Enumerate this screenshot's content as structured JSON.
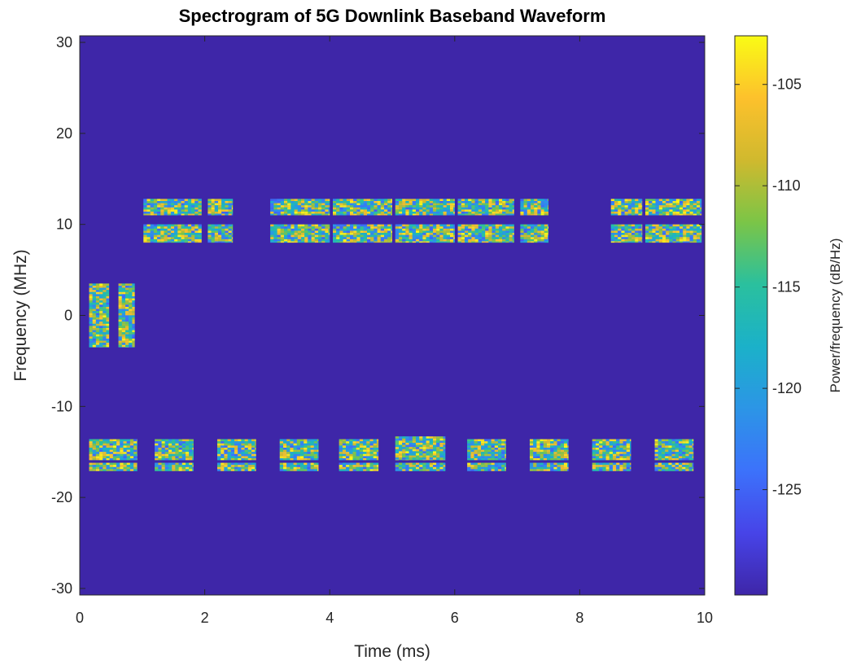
{
  "chart_data": {
    "type": "heatmap",
    "title": "Spectrogram of 5G Downlink Baseband Waveform",
    "xlabel": "Time (ms)",
    "ylabel": "Frequency (MHz)",
    "xlim": [
      0,
      10
    ],
    "ylim": [
      -30.72,
      30.72
    ],
    "xticks": [
      0,
      2,
      4,
      6,
      8,
      10
    ],
    "yticks": [
      -30,
      -20,
      -10,
      0,
      10,
      20,
      30
    ],
    "background_color": "#3e26a8",
    "colorbar": {
      "label": "Power/frequency (dB/Hz)",
      "range": [
        -130.2,
        -102.6
      ],
      "ticks": [
        -125,
        -120,
        -115,
        -110,
        -105
      ],
      "colormap": [
        "#3e26a8",
        "#4744e8",
        "#3c72fb",
        "#2c95e6",
        "#1bb1c9",
        "#2ac09e",
        "#7bc547",
        "#d0b92e",
        "#fdc12c",
        "#f9fb15"
      ]
    },
    "bursts": [
      {
        "t": [
          0.15,
          0.47
        ],
        "f": [
          -3.5,
          3.5
        ]
      },
      {
        "t": [
          0.62,
          0.88
        ],
        "f": [
          -3.5,
          3.5
        ]
      },
      {
        "t": [
          1.02,
          1.95
        ],
        "f": [
          11.0,
          12.8
        ]
      },
      {
        "t": [
          1.02,
          1.95
        ],
        "f": [
          8.0,
          10.0
        ]
      },
      {
        "t": [
          2.05,
          2.45
        ],
        "f": [
          11.0,
          12.8
        ]
      },
      {
        "t": [
          2.05,
          2.45
        ],
        "f": [
          8.0,
          10.0
        ]
      },
      {
        "t": [
          3.05,
          4.0
        ],
        "f": [
          11.0,
          12.8
        ]
      },
      {
        "t": [
          3.05,
          4.0
        ],
        "f": [
          8.0,
          10.0
        ]
      },
      {
        "t": [
          4.05,
          5.0
        ],
        "f": [
          11.0,
          12.8
        ]
      },
      {
        "t": [
          4.05,
          5.0
        ],
        "f": [
          8.0,
          10.0
        ]
      },
      {
        "t": [
          5.05,
          6.0
        ],
        "f": [
          11.0,
          12.8
        ]
      },
      {
        "t": [
          5.05,
          6.0
        ],
        "f": [
          8.0,
          10.0
        ]
      },
      {
        "t": [
          6.05,
          6.95
        ],
        "f": [
          11.0,
          12.8
        ]
      },
      {
        "t": [
          6.05,
          6.95
        ],
        "f": [
          8.0,
          10.0
        ]
      },
      {
        "t": [
          7.05,
          7.5
        ],
        "f": [
          11.0,
          12.8
        ]
      },
      {
        "t": [
          7.05,
          7.5
        ],
        "f": [
          8.0,
          10.0
        ]
      },
      {
        "t": [
          8.5,
          9.0
        ],
        "f": [
          11.0,
          12.8
        ]
      },
      {
        "t": [
          8.5,
          9.0
        ],
        "f": [
          8.0,
          10.0
        ]
      },
      {
        "t": [
          9.05,
          9.95
        ],
        "f": [
          11.0,
          12.8
        ]
      },
      {
        "t": [
          9.05,
          9.95
        ],
        "f": [
          8.0,
          10.0
        ]
      },
      {
        "t": [
          0.15,
          0.92
        ],
        "f": [
          -15.9,
          -13.6
        ]
      },
      {
        "t": [
          0.15,
          0.92
        ],
        "f": [
          -17.1,
          -16.2
        ]
      },
      {
        "t": [
          1.2,
          1.82
        ],
        "f": [
          -15.9,
          -13.6
        ]
      },
      {
        "t": [
          1.2,
          1.82
        ],
        "f": [
          -17.1,
          -16.2
        ]
      },
      {
        "t": [
          2.2,
          2.82
        ],
        "f": [
          -15.9,
          -13.6
        ]
      },
      {
        "t": [
          2.2,
          2.82
        ],
        "f": [
          -17.1,
          -16.2
        ]
      },
      {
        "t": [
          3.2,
          3.82
        ],
        "f": [
          -15.9,
          -13.6
        ]
      },
      {
        "t": [
          3.2,
          3.82
        ],
        "f": [
          -17.1,
          -16.2
        ]
      },
      {
        "t": [
          4.15,
          4.78
        ],
        "f": [
          -15.9,
          -13.6
        ]
      },
      {
        "t": [
          4.15,
          4.78
        ],
        "f": [
          -17.1,
          -16.2
        ]
      },
      {
        "t": [
          5.05,
          5.85
        ],
        "f": [
          -15.9,
          -13.3
        ]
      },
      {
        "t": [
          5.05,
          5.85
        ],
        "f": [
          -17.1,
          -16.2
        ]
      },
      {
        "t": [
          6.2,
          6.82
        ],
        "f": [
          -15.9,
          -13.6
        ]
      },
      {
        "t": [
          6.2,
          6.82
        ],
        "f": [
          -17.1,
          -16.2
        ]
      },
      {
        "t": [
          7.2,
          7.82
        ],
        "f": [
          -15.9,
          -13.6
        ]
      },
      {
        "t": [
          7.2,
          7.82
        ],
        "f": [
          -17.1,
          -16.2
        ]
      },
      {
        "t": [
          8.2,
          8.82
        ],
        "f": [
          -15.9,
          -13.6
        ]
      },
      {
        "t": [
          8.2,
          8.82
        ],
        "f": [
          -17.1,
          -16.2
        ]
      },
      {
        "t": [
          9.2,
          9.82
        ],
        "f": [
          -15.9,
          -13.6
        ]
      },
      {
        "t": [
          9.2,
          9.82
        ],
        "f": [
          -17.1,
          -16.2
        ]
      }
    ]
  }
}
